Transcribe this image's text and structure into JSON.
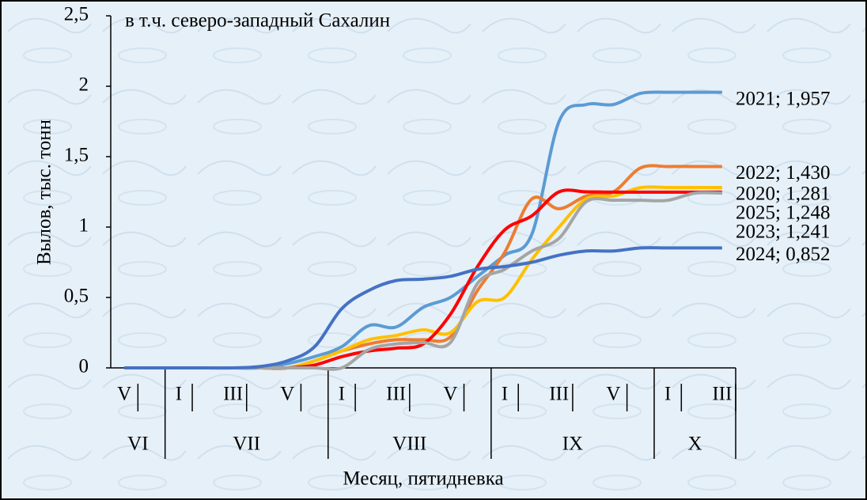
{
  "chart_data": {
    "type": "line",
    "title": "в т.ч. северо-западный Сахалин",
    "y_label": "Вылов, тыс. тонн",
    "x_label": "Месяц, пятидневка",
    "categories": [
      "V",
      null,
      "I",
      null,
      "III",
      null,
      "V",
      null,
      "I",
      null,
      "III",
      null,
      "V",
      null,
      "I",
      null,
      "III",
      null,
      "V",
      null,
      "I",
      null,
      "III"
    ],
    "category_groups": [
      "VI",
      null,
      "VII",
      null,
      null,
      null,
      null,
      null,
      "VIII",
      null,
      null,
      null,
      null,
      null,
      "IX",
      null,
      null,
      null,
      null,
      null,
      "X",
      null,
      null
    ],
    "series": [
      {
        "name": "2021",
        "color": "#5b9bd5",
        "end_label": "2021; 1,957",
        "values": [
          0,
          0,
          0,
          0,
          0,
          0,
          0.03,
          0.08,
          0.15,
          0.3,
          0.29,
          0.43,
          0.5,
          0.65,
          0.8,
          0.95,
          1.75,
          1.87,
          1.87,
          1.95,
          1.957,
          1.957,
          1.957
        ]
      },
      {
        "name": "2022",
        "color": "#ed7d31",
        "end_label": "2022; 1,430",
        "values": [
          0,
          0,
          0,
          0,
          0,
          0,
          0,
          0.05,
          0.12,
          0.17,
          0.2,
          0.2,
          0.22,
          0.55,
          0.82,
          1.2,
          1.13,
          1.22,
          1.25,
          1.42,
          1.43,
          1.43,
          1.43
        ]
      },
      {
        "name": "2020",
        "color": "#ffc000",
        "end_label": "2020; 1,281",
        "values": [
          0,
          0,
          0,
          0,
          0,
          0,
          0,
          0.05,
          0.12,
          0.2,
          0.23,
          0.27,
          0.25,
          0.47,
          0.5,
          0.77,
          1.0,
          1.2,
          1.22,
          1.28,
          1.281,
          1.281,
          1.281
        ]
      },
      {
        "name": "2025",
        "color": "#ff0000",
        "end_label": "2025; 1,248",
        "values": [
          0,
          0,
          0,
          0,
          0,
          0,
          0,
          0.02,
          0.08,
          0.12,
          0.14,
          0.17,
          0.38,
          0.72,
          0.98,
          1.08,
          1.25,
          1.25,
          1.248,
          1.248,
          1.248,
          1.248,
          1.248
        ]
      },
      {
        "name": "2023",
        "color": "#a5a5a5",
        "end_label": "2023; 1,241",
        "values": [
          0,
          0,
          0,
          0,
          0,
          0,
          0,
          0,
          0,
          0.13,
          0.17,
          0.18,
          0.18,
          0.6,
          0.7,
          0.83,
          0.92,
          1.18,
          1.19,
          1.19,
          1.19,
          1.241,
          1.241
        ]
      },
      {
        "name": "2024",
        "color": "#4472c4",
        "end_label": "2024; 0,852",
        "values": [
          0,
          0,
          0,
          0,
          0,
          0.01,
          0.05,
          0.15,
          0.42,
          0.55,
          0.62,
          0.63,
          0.65,
          0.7,
          0.72,
          0.75,
          0.8,
          0.83,
          0.83,
          0.852,
          0.852,
          0.852,
          0.852
        ]
      }
    ],
    "ylim": [
      0,
      2.5
    ],
    "yticks": [
      0,
      {
        "value": 0.5,
        "label": "0,5"
      },
      1,
      {
        "value": 1.5,
        "label": "1,5"
      },
      2,
      {
        "value": 2.5,
        "label": "2,5"
      }
    ],
    "grid": false
  }
}
